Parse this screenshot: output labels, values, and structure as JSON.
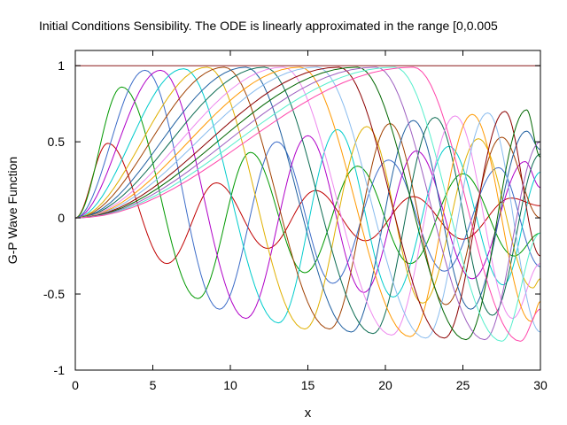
{
  "chart_data": {
    "type": "line",
    "title": "Initial Conditions Sensibility. The ODE is linearly approximated in the range [0,0.005",
    "xlabel": "x",
    "ylabel": "G-P Wave Function",
    "xlim": [
      0,
      30
    ],
    "ylim": [
      -1,
      1.1
    ],
    "xticks": [
      0,
      5,
      10,
      15,
      20,
      25,
      30
    ],
    "xtick_labels": [
      "0",
      "5",
      "10",
      "15",
      "20",
      "25",
      "30"
    ],
    "yticks": [
      -1,
      -0.5,
      0,
      0.5,
      1
    ],
    "ytick_labels": [
      "-1",
      "-0.5",
      "0",
      "0.5",
      "1"
    ],
    "grid": false,
    "legend": "none",
    "reference_line": {
      "y": 1,
      "color": "#8b1a1a"
    },
    "series": [
      {
        "color": "#c00000",
        "x": [
          0,
          2.1,
          5.9,
          9.1,
          12.4,
          15.5,
          18.7,
          21.8,
          25.0,
          28.1,
          30
        ],
        "values": [
          0,
          0.49,
          -0.3,
          0.23,
          -0.2,
          0.18,
          -0.15,
          0.14,
          -0.14,
          0.13,
          0.08
        ]
      },
      {
        "color": "#009900",
        "x": [
          0,
          3.0,
          7.9,
          11.3,
          14.8,
          18.2,
          21.6,
          25.0,
          28.3,
          30
        ],
        "values": [
          0,
          0.86,
          -0.53,
          0.43,
          -0.36,
          0.34,
          -0.3,
          0.29,
          -0.25,
          -0.1
        ]
      },
      {
        "color": "#3c6cc8",
        "x": [
          0,
          4.5,
          9.3,
          13.0,
          16.6,
          20.2,
          23.8,
          27.3,
          30
        ],
        "values": [
          0,
          0.97,
          -0.6,
          0.5,
          -0.43,
          0.38,
          -0.35,
          0.33,
          -0.32
        ]
      },
      {
        "color": "#b000c8",
        "x": [
          0,
          5.5,
          11.0,
          15.0,
          18.6,
          22.0,
          25.6,
          29.0,
          30
        ],
        "values": [
          0,
          0.97,
          -0.66,
          0.54,
          -0.49,
          0.44,
          -0.4,
          0.37,
          0.2
        ]
      },
      {
        "color": "#00cccc",
        "x": [
          0,
          7.0,
          13.1,
          16.9,
          20.5,
          24.1,
          27.6,
          30
        ],
        "values": [
          0,
          0.98,
          -0.69,
          0.58,
          -0.52,
          0.47,
          -0.44,
          0.3
        ]
      },
      {
        "color": "#e0b000",
        "x": [
          0,
          8.5,
          14.8,
          18.8,
          22.4,
          26.0,
          29.5,
          30
        ],
        "values": [
          0,
          0.99,
          -0.73,
          0.6,
          -0.56,
          0.52,
          -0.46,
          -0.4
        ]
      },
      {
        "color": "#a04000",
        "x": [
          0,
          9.6,
          16.4,
          20.3,
          23.9,
          27.5,
          30
        ],
        "values": [
          0,
          0.99,
          -0.73,
          0.62,
          -0.57,
          0.53,
          0.0
        ]
      },
      {
        "color": "#2060a0",
        "x": [
          0,
          11.0,
          17.8,
          21.8,
          25.5,
          29.1,
          30
        ],
        "values": [
          0,
          0.99,
          -0.75,
          0.64,
          -0.6,
          0.57,
          0.45
        ]
      },
      {
        "color": "#0a6a50",
        "x": [
          0,
          12.2,
          19.2,
          23.2,
          26.9,
          30
        ],
        "values": [
          0,
          0.99,
          -0.76,
          0.66,
          -0.64,
          0.42
        ]
      },
      {
        "color": "#ee88ee",
        "x": [
          0,
          13.4,
          20.4,
          24.5,
          28.2,
          30
        ],
        "values": [
          0,
          0.99,
          -0.77,
          0.67,
          -0.66,
          -0.3
        ]
      },
      {
        "color": "#ff9900",
        "x": [
          0,
          14.5,
          21.6,
          25.6,
          29.4,
          30
        ],
        "values": [
          0,
          0.99,
          -0.78,
          0.68,
          -0.68,
          -0.55
        ]
      },
      {
        "color": "#88bbee",
        "x": [
          0,
          15.6,
          22.6,
          26.6,
          30
        ],
        "values": [
          0,
          0.99,
          -0.79,
          0.69,
          -0.75
        ]
      },
      {
        "color": "#8b0000",
        "x": [
          0,
          17.0,
          23.8,
          27.7,
          30
        ],
        "values": [
          0,
          0.99,
          -0.79,
          0.7,
          -0.25
        ]
      },
      {
        "color": "#006600",
        "x": [
          0,
          18.2,
          25.2,
          29.1,
          30
        ],
        "values": [
          0,
          0.99,
          -0.8,
          0.71,
          0.4
        ]
      },
      {
        "color": "#9d5fc0",
        "x": [
          0,
          19.4,
          26.4,
          30
        ],
        "values": [
          0,
          0.99,
          -0.8,
          0.5
        ]
      },
      {
        "color": "#55eecc",
        "x": [
          0,
          20.6,
          27.5,
          30
        ],
        "values": [
          0,
          0.99,
          -0.81,
          -0.1
        ]
      },
      {
        "color": "#ff44aa",
        "x": [
          0,
          21.8,
          28.7,
          30
        ],
        "values": [
          0,
          0.99,
          -0.81,
          -0.6
        ]
      }
    ]
  }
}
